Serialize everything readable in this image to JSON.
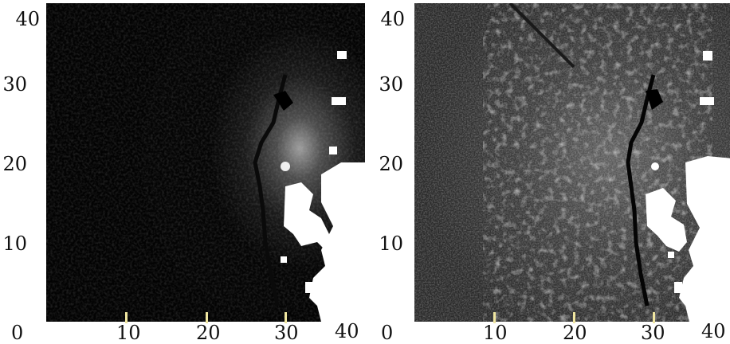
{
  "figure": {
    "panels": [
      {
        "id": "left",
        "x_ticks": [
          "10",
          "20",
          "30",
          "40"
        ],
        "x_origin": "0",
        "y_ticks": [
          "40",
          "30",
          "20",
          "10"
        ]
      },
      {
        "id": "right",
        "x_ticks": [
          "10",
          "20",
          "30",
          "40"
        ],
        "x_origin": "0",
        "y_ticks": [
          "40",
          "30",
          "20",
          "10"
        ]
      }
    ]
  },
  "colors": {
    "background": "#000000",
    "ice_bright": "#ffffff",
    "tick_mark": "#f0e6a0"
  }
}
